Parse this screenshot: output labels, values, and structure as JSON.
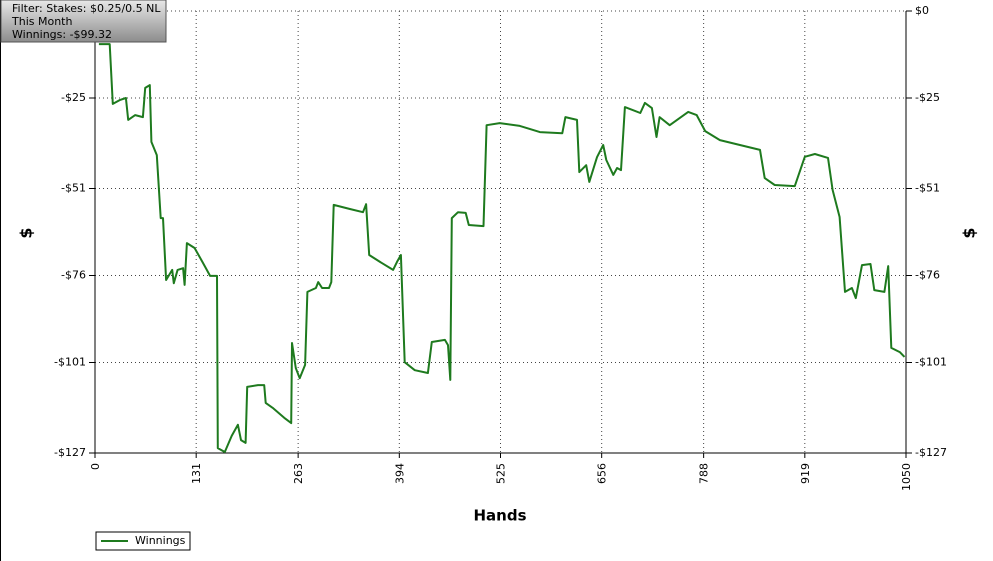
{
  "chart_data": {
    "type": "line",
    "info": [
      "Filter: Stakes: $0.25/0.5 NL",
      "This Month",
      "Winnings: -$99.32"
    ],
    "xlabel": "Hands",
    "ylabel": "$",
    "x": [
      5,
      19,
      23,
      32,
      40,
      43,
      52,
      62,
      65,
      71,
      73,
      80,
      85,
      88,
      92,
      100,
      102,
      107,
      114,
      116,
      119,
      129,
      139,
      149,
      158,
      159,
      168,
      177,
      185,
      189,
      195,
      197,
      211,
      219,
      221,
      230,
      245,
      254,
      255,
      260,
      265,
      272,
      275,
      286,
      289,
      294,
      303,
      306,
      309,
      330,
      347,
      351,
      355,
      369,
      386,
      391,
      396,
      401,
      414,
      431,
      436,
      453,
      457,
      460,
      462,
      470,
      480,
      484,
      503,
      507,
      524,
      550,
      576,
      605,
      609,
      624,
      627,
      636,
      640,
      650,
      658,
      662,
      671,
      676,
      681,
      686,
      706,
      712,
      721,
      727,
      731,
      744,
      768,
      779,
      790,
      809,
      835,
      861,
      867,
      880,
      906,
      919,
      932,
      949,
      955,
      964,
      971,
      980,
      985,
      993,
      1004,
      1009,
      1022,
      1027,
      1031,
      1042,
      1048
    ],
    "series": [
      {
        "name": "Winnings",
        "color": "#1e7a1e",
        "values": [
          -9.5,
          -9.5,
          -26.7,
          -25.6,
          -25,
          -31.3,
          -29.9,
          -30.5,
          -22.1,
          -21.3,
          -37.6,
          -41.4,
          -59.5,
          -59.5,
          -77.3,
          -74.4,
          -78.2,
          -74.4,
          -73.9,
          -78.7,
          -66.7,
          -68.1,
          -72.1,
          -76.1,
          -76.1,
          -125.6,
          -126.7,
          -122.1,
          -118.9,
          -123.3,
          -124.1,
          -108,
          -107.5,
          -107.5,
          -112.6,
          -114,
          -116.9,
          -118.4,
          -95.4,
          -102.6,
          -105.5,
          -101.7,
          -80.7,
          -79.6,
          -77.9,
          -79.6,
          -79.6,
          -77.9,
          -55.7,
          -56.9,
          -57.8,
          -55.5,
          -70.1,
          -72.1,
          -74.4,
          -72.1,
          -70.1,
          -100.9,
          -103.2,
          -104,
          -95.1,
          -94.5,
          -96,
          -106,
          -59.5,
          -57.8,
          -58,
          -61.5,
          -61.8,
          -32.8,
          -32.2,
          -33,
          -34.8,
          -35.1,
          -30.5,
          -31.3,
          -46.3,
          -44.3,
          -49.1,
          -42,
          -38.5,
          -42.8,
          -47.1,
          -45.1,
          -45.7,
          -27.6,
          -29.3,
          -26.4,
          -27.9,
          -36.2,
          -30.5,
          -32.8,
          -29,
          -29.9,
          -34.5,
          -37.1,
          -38.5,
          -39.9,
          -48,
          -50,
          -50.3,
          -41.9,
          -41.1,
          -42.2,
          -51.4,
          -59.2,
          -80.7,
          -79.6,
          -82.5,
          -73,
          -72.7,
          -80.2,
          -80.7,
          -73.3,
          -96.8,
          -98,
          -99.4
        ]
      }
    ],
    "xlim": [
      0,
      1050
    ],
    "xticks": [
      0,
      131,
      263,
      394,
      525,
      656,
      788,
      919,
      1050
    ],
    "ylim": [
      -127,
      0
    ],
    "yticks": [
      {
        "value": 0,
        "label": "$0"
      },
      {
        "value": -25,
        "label": "-$25"
      },
      {
        "value": -51,
        "label": "-$51"
      },
      {
        "value": -76,
        "label": "-$76"
      },
      {
        "value": -101,
        "label": "-$101"
      },
      {
        "value": -127,
        "label": "-$127"
      }
    ],
    "grid": true
  }
}
